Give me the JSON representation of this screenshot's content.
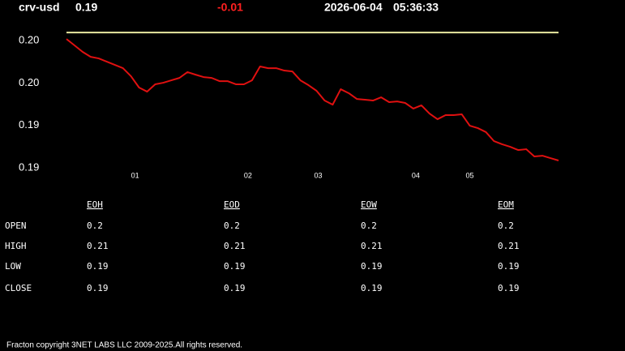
{
  "header": {
    "symbol": "crv-usd",
    "price": "0.19",
    "change": "-0.01",
    "date": "2026-06-04",
    "time": "05:36:33"
  },
  "chart_data": {
    "type": "line",
    "x": [
      0,
      1,
      2,
      3,
      4,
      5,
      6,
      7,
      8,
      9,
      10,
      11,
      12,
      13,
      14,
      15,
      16,
      17,
      18,
      19,
      20,
      21,
      22,
      23,
      24,
      25,
      26,
      27,
      28,
      29,
      30,
      31,
      32,
      33,
      34,
      35,
      36,
      37,
      38,
      39,
      40,
      41,
      42,
      43,
      44,
      45,
      46,
      47,
      48,
      49,
      50,
      51,
      52,
      53,
      54,
      55,
      56,
      57,
      58,
      59,
      60,
      61
    ],
    "series": [
      {
        "color": "#e01010",
        "values": [
          0.19911,
          0.19866,
          0.1982,
          0.19785,
          0.19774,
          0.19751,
          0.19728,
          0.19705,
          0.19648,
          0.19568,
          0.19539,
          0.19591,
          0.19602,
          0.19619,
          0.19636,
          0.19677,
          0.19659,
          0.19642,
          0.19636,
          0.19613,
          0.19613,
          0.19591,
          0.19591,
          0.19619,
          0.19717,
          0.19705,
          0.19705,
          0.19688,
          0.19682,
          0.19619,
          0.19585,
          0.19545,
          0.19476,
          0.19447,
          0.19556,
          0.19528,
          0.19487,
          0.19482,
          0.19476,
          0.19499,
          0.19465,
          0.1947,
          0.19459,
          0.19419,
          0.19442,
          0.19384,
          0.19344,
          0.19373,
          0.19373,
          0.19379,
          0.19298,
          0.19281,
          0.19253,
          0.19189,
          0.19167,
          0.19149,
          0.19126,
          0.19132,
          0.19081,
          0.19086,
          0.19069,
          0.19052
        ]
      }
    ],
    "reference_line": {
      "value": 0.19957,
      "color": "#e8e8a0"
    },
    "xlim": [
      0,
      61
    ],
    "xticks": [
      {
        "value": 8.5,
        "label": "01"
      },
      {
        "value": 22.5,
        "label": "02"
      },
      {
        "value": 31.2,
        "label": "03"
      },
      {
        "value": 43.3,
        "label": "04"
      },
      {
        "value": 50,
        "label": "05"
      }
    ],
    "ylim": [
      0.18926,
      0.20015
    ],
    "yticks": [
      {
        "value": 0.199,
        "label": "0.20"
      },
      {
        "value": 0.196,
        "label": "0.20"
      },
      {
        "value": 0.193,
        "label": "0.19"
      },
      {
        "value": 0.19,
        "label": "0.19"
      }
    ]
  },
  "table": {
    "columns": [
      "EOH",
      "EOD",
      "EOW",
      "EOM"
    ],
    "rows": [
      {
        "label": "OPEN",
        "cells": [
          "0.2",
          "0.2",
          "0.2",
          "0.2"
        ]
      },
      {
        "label": "HIGH",
        "cells": [
          "0.21",
          "0.21",
          "0.21",
          "0.21"
        ]
      },
      {
        "label": "LOW",
        "cells": [
          "0.19",
          "0.19",
          "0.19",
          "0.19"
        ]
      },
      {
        "label": "CLOSE",
        "cells": [
          "0.19",
          "0.19",
          "0.19",
          "0.19"
        ]
      }
    ]
  },
  "footer": "Fracton copyright 3NET LABS LLC 2009-2025.All rights reserved."
}
